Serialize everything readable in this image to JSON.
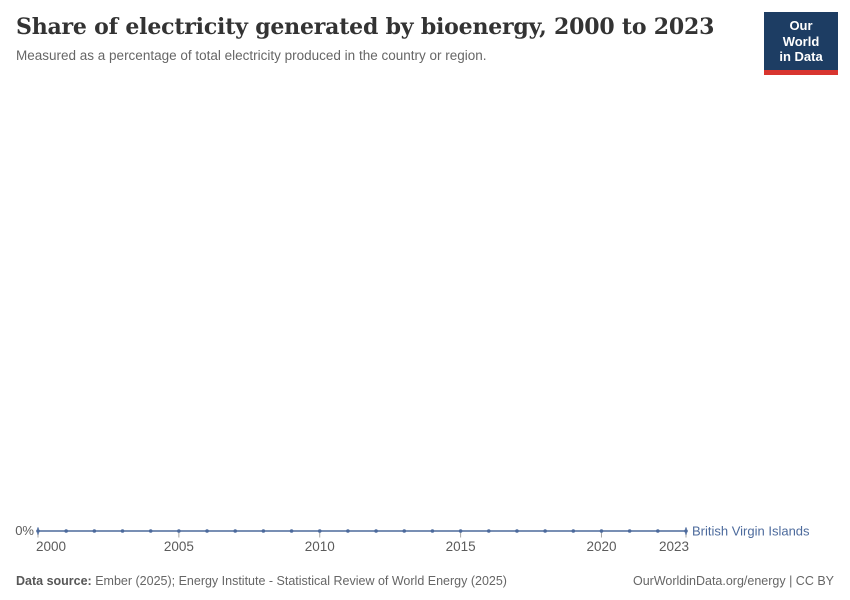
{
  "header": {
    "title": "Share of electricity generated by bioenergy, 2000 to 2023",
    "subtitle": "Measured as a percentage of total electricity produced in the country or region.",
    "logo_line1": "Our World",
    "logo_line2": "in Data"
  },
  "chart_data": {
    "type": "line",
    "title": "Share of electricity generated by bioenergy, 2000 to 2023",
    "subtitle": "Measured as a percentage of total electricity produced in the country or region.",
    "x": [
      2000,
      2001,
      2002,
      2003,
      2004,
      2005,
      2006,
      2007,
      2008,
      2009,
      2010,
      2011,
      2012,
      2013,
      2014,
      2015,
      2016,
      2017,
      2018,
      2019,
      2020,
      2021,
      2022,
      2023
    ],
    "series": [
      {
        "name": "British Virgin Islands",
        "values": [
          0,
          0,
          0,
          0,
          0,
          0,
          0,
          0,
          0,
          0,
          0,
          0,
          0,
          0,
          0,
          0,
          0,
          0,
          0,
          0,
          0,
          0,
          0,
          0
        ],
        "unit": "%"
      }
    ],
    "x_tick_years": [
      2000,
      2005,
      2010,
      2015,
      2020,
      2023
    ],
    "x_tick_labels": [
      "2000",
      "2005",
      "2010",
      "2015",
      "2020",
      "2023"
    ],
    "y_tick_labels": [
      "0%"
    ],
    "xlabel": "",
    "ylabel": "",
    "ylim": [
      0,
      1
    ],
    "grid": false,
    "legend_position": "end-of-line",
    "markers": true
  },
  "footer": {
    "data_source_label": "Data source:",
    "data_source_text": " Ember (2025); Energy Institute - Statistical Review of World Energy (2025)",
    "attribution": "OurWorldinData.org/energy | CC BY"
  },
  "colors": {
    "line": "#4C6A9C",
    "entity_label": "#4C6A9C",
    "axis_text": "#5b5b5b",
    "tick_mark": "#a5a5a5",
    "title_text": "#333333",
    "subtitle_text": "#666666",
    "logo_bg": "#1d3d63",
    "logo_red": "#d8352f"
  }
}
